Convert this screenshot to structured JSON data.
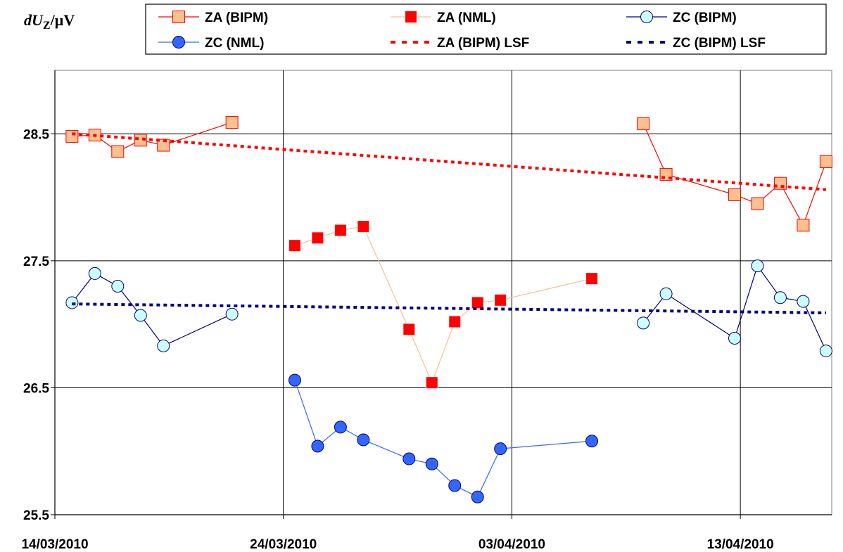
{
  "chart_data": {
    "type": "line",
    "ylabel": "dU Z/µV",
    "ylabel_parts": {
      "main": "dU",
      "sub": "Z",
      "unit": "/µV"
    },
    "x_axis": {
      "type": "date",
      "min": "2010-03-14",
      "max": "2010-04-17",
      "tick_labels": [
        "14/03/2010",
        "24/03/2010",
        "03/04/2010",
        "13/04/2010"
      ]
    },
    "y_axis": {
      "min": 25.5,
      "max": 29.0,
      "ticks": [
        25.5,
        26.5,
        27.5,
        28.5
      ],
      "tick_labels": [
        "25.5",
        "26.5",
        "27.5",
        "28.5"
      ]
    },
    "grid": true,
    "legend_position": "top",
    "series": [
      {
        "name": "ZA (BIPM)",
        "style": "line-marker",
        "marker": "square",
        "color": "#ff0000",
        "fill": "#fac090",
        "points": [
          [
            "2010-03-14T18:00",
            28.48
          ],
          [
            "2010-03-15T18:00",
            28.49
          ],
          [
            "2010-03-16T18:00",
            28.36
          ],
          [
            "2010-03-17T18:00",
            28.45
          ],
          [
            "2010-03-18T18:00",
            28.41
          ],
          [
            "2010-03-21T18:00",
            28.59
          ],
          [
            "2010-04-08T18:00",
            28.58
          ],
          [
            "2010-04-09T18:00",
            28.18
          ],
          [
            "2010-04-12T18:00",
            28.02
          ],
          [
            "2010-04-13T18:00",
            27.95
          ],
          [
            "2010-04-14T18:00",
            28.11
          ],
          [
            "2010-04-15T18:00",
            27.78
          ],
          [
            "2010-04-16T18:00",
            28.28
          ]
        ],
        "breaks": [
          6
        ]
      },
      {
        "name": "ZA (NML)",
        "style": "line-marker",
        "marker": "square",
        "color": "#fac090",
        "fill": "#ff0000",
        "points": [
          [
            "2010-03-24T12:00",
            27.62
          ],
          [
            "2010-03-25T12:00",
            27.68
          ],
          [
            "2010-03-26T12:00",
            27.74
          ],
          [
            "2010-03-27T12:00",
            27.77
          ],
          [
            "2010-03-29T12:00",
            26.96
          ],
          [
            "2010-03-30T12:00",
            26.54
          ],
          [
            "2010-03-31T12:00",
            27.02
          ],
          [
            "2010-04-01T12:00",
            27.17
          ],
          [
            "2010-04-02T12:00",
            27.19
          ],
          [
            "2010-04-06T12:00",
            27.36
          ]
        ]
      },
      {
        "name": "ZC (BIPM)",
        "style": "line-marker",
        "marker": "circle",
        "color": "#000080",
        "fill": "#ccffff",
        "points": [
          [
            "2010-03-14T18:00",
            27.17
          ],
          [
            "2010-03-15T18:00",
            27.4
          ],
          [
            "2010-03-16T18:00",
            27.3
          ],
          [
            "2010-03-17T18:00",
            27.07
          ],
          [
            "2010-03-18T18:00",
            26.83
          ],
          [
            "2010-03-21T18:00",
            27.08
          ],
          [
            "2010-04-08T18:00",
            27.01
          ],
          [
            "2010-04-09T18:00",
            27.24
          ],
          [
            "2010-04-12T18:00",
            26.89
          ],
          [
            "2010-04-13T18:00",
            27.46
          ],
          [
            "2010-04-14T18:00",
            27.21
          ],
          [
            "2010-04-15T18:00",
            27.18
          ],
          [
            "2010-04-16T18:00",
            26.79
          ]
        ],
        "breaks": [
          6
        ]
      },
      {
        "name": "ZC (NML)",
        "style": "line-marker",
        "marker": "circle",
        "color": "#3366ff",
        "fill": "#3366ff",
        "points": [
          [
            "2010-03-24T12:00",
            26.56
          ],
          [
            "2010-03-25T12:00",
            26.04
          ],
          [
            "2010-03-26T12:00",
            26.19
          ],
          [
            "2010-03-27T12:00",
            26.09
          ],
          [
            "2010-03-29T12:00",
            25.94
          ],
          [
            "2010-03-30T12:00",
            25.9
          ],
          [
            "2010-03-31T12:00",
            25.73
          ],
          [
            "2010-04-01T12:00",
            25.64
          ],
          [
            "2010-04-02T12:00",
            26.02
          ],
          [
            "2010-04-06T12:00",
            26.08
          ]
        ]
      },
      {
        "name": "ZA (BIPM) LSF",
        "style": "dotted-line",
        "color": "#ff0000",
        "points": [
          [
            "2010-03-14T18:00",
            28.5
          ],
          [
            "2010-04-16T18:00",
            28.06
          ]
        ]
      },
      {
        "name": "ZC (BIPM) LSF",
        "style": "dotted-line",
        "color": "#000080",
        "points": [
          [
            "2010-03-14T18:00",
            27.16
          ],
          [
            "2010-04-16T18:00",
            27.09
          ]
        ]
      }
    ]
  }
}
